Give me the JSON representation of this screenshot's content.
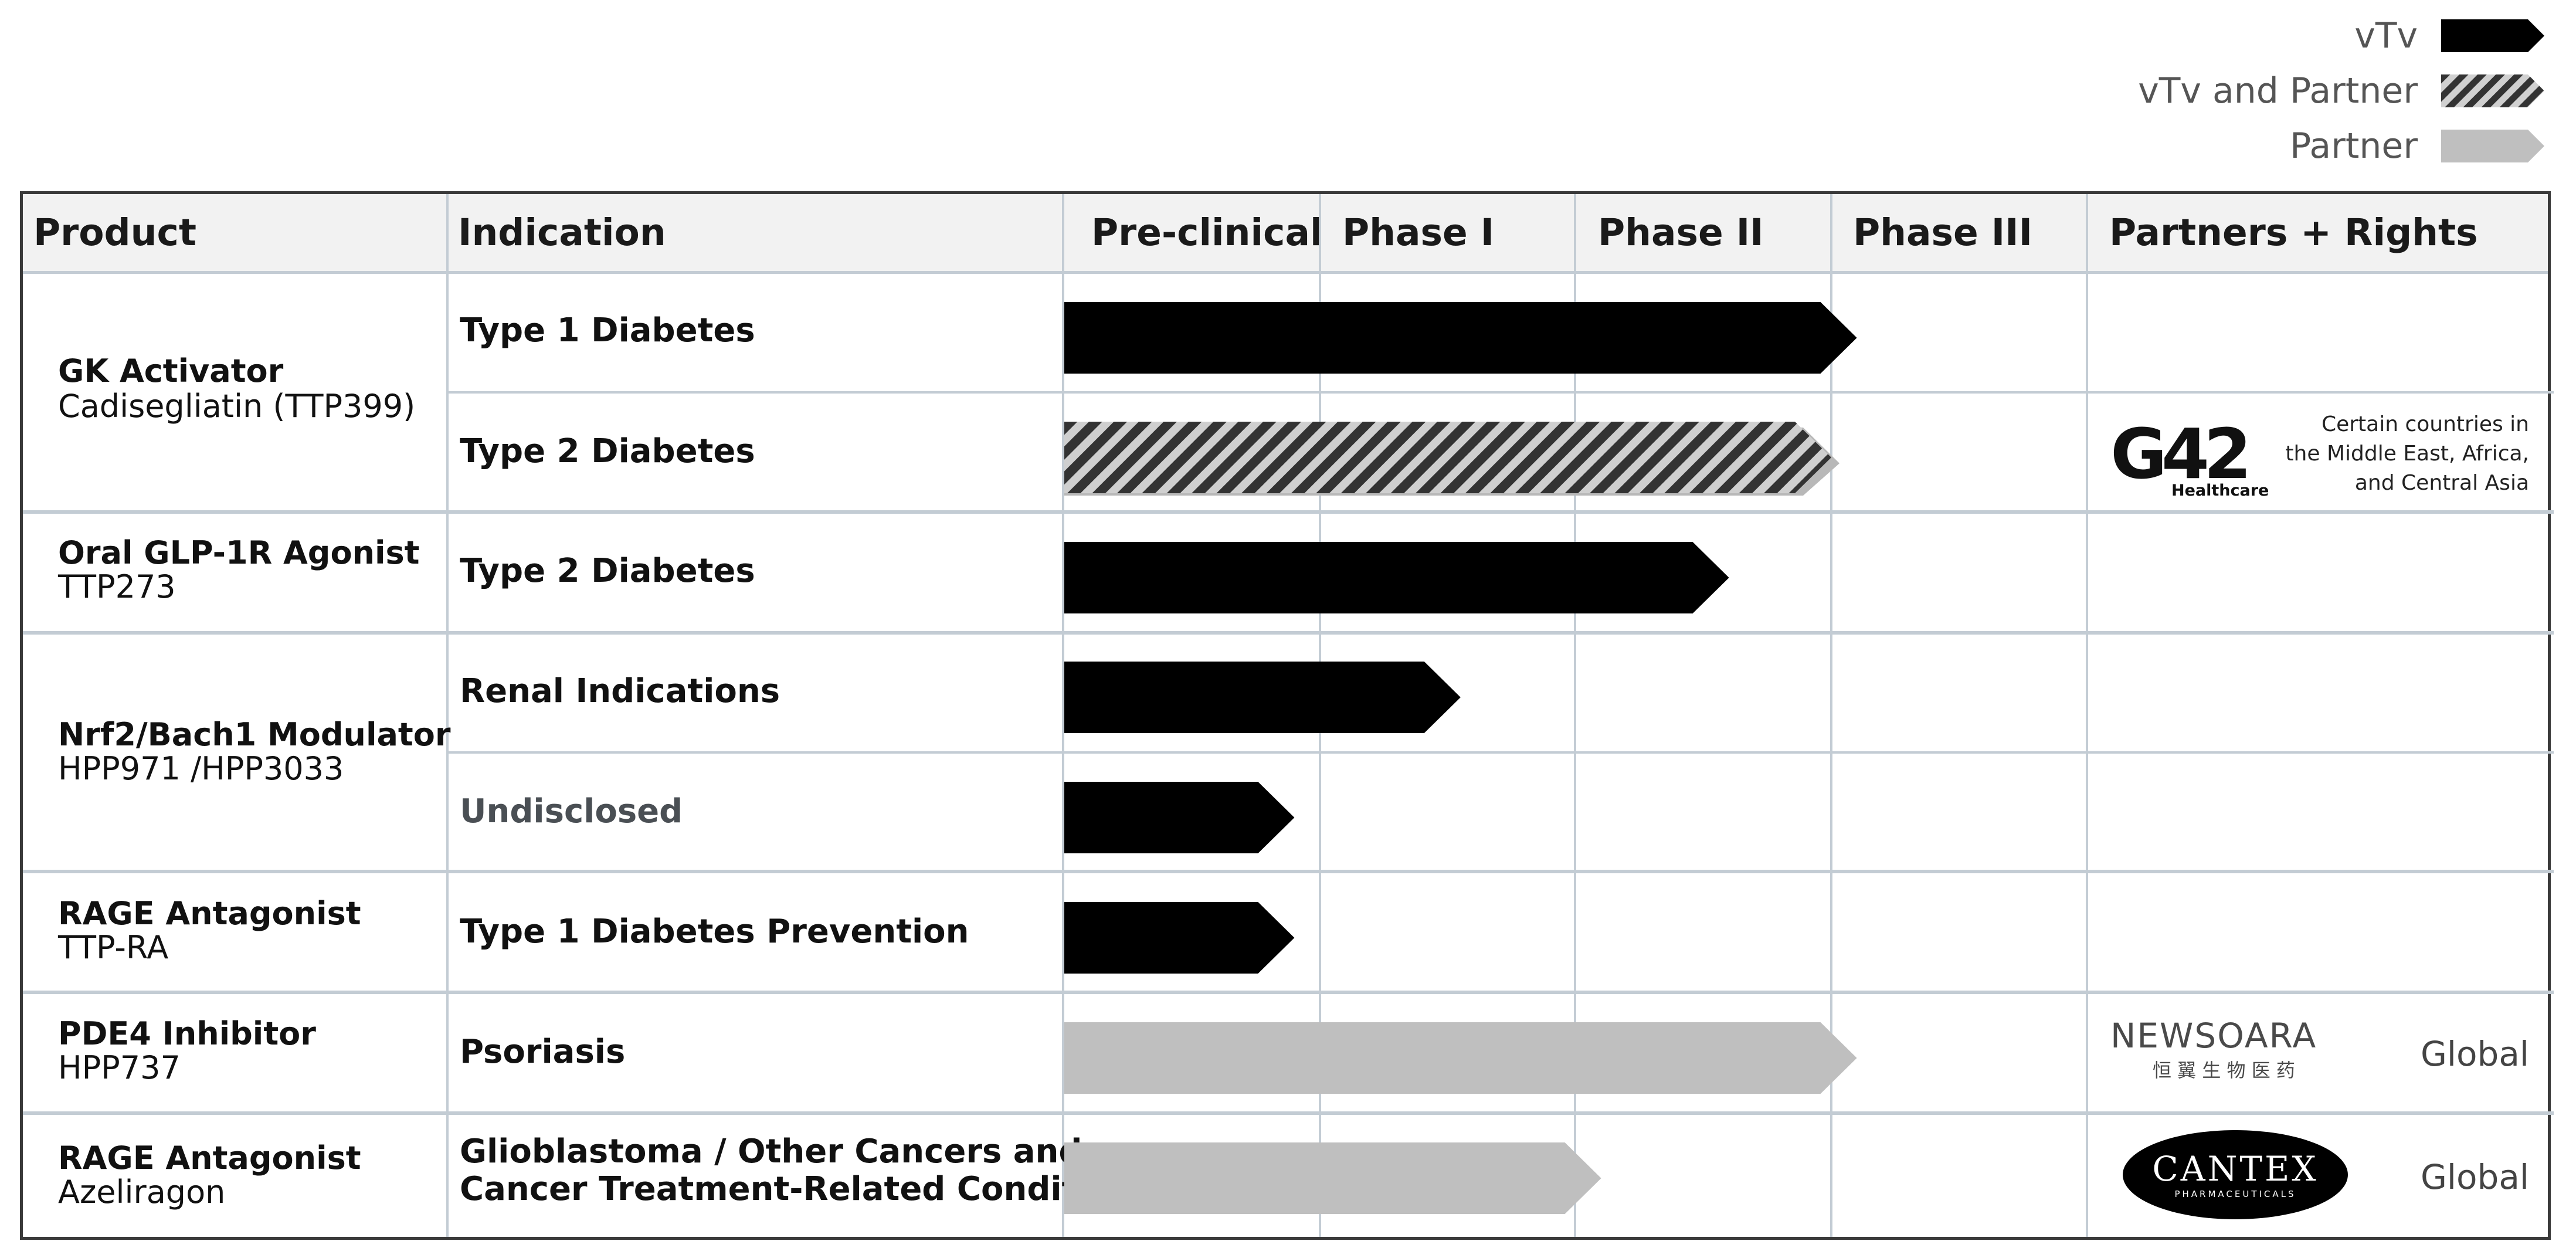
{
  "legend": [
    {
      "label": "vTv",
      "style": "solid"
    },
    {
      "label": "vTv and Partner",
      "style": "hatched"
    },
    {
      "label": "Partner",
      "style": "gray"
    }
  ],
  "columns": {
    "product": "Product",
    "indication": "Indication",
    "phases": [
      "Pre-clinical",
      "Phase I",
      "Phase II",
      "Phase III"
    ],
    "partners": "Partners + Rights"
  },
  "products": [
    {
      "name": "GK Activator",
      "code": "Cadisegliatin (TTP399)"
    },
    {
      "name": "Oral GLP-1R Agonist",
      "code": "TTP273"
    },
    {
      "name": "Nrf2/Bach1 Modulator",
      "code": "HPP971 /HPP3033"
    },
    {
      "name": "RAGE Antagonist",
      "code": "TTP-RA"
    },
    {
      "name": "PDE4 Inhibitor",
      "code": "HPP737"
    },
    {
      "name": "RAGE Antagonist",
      "code": "Azeliragon"
    }
  ],
  "rows": [
    {
      "indication": "Type 1 Diabetes",
      "progress": 3.1,
      "style": "solid"
    },
    {
      "indication": "Type 2 Diabetes",
      "progress": 3.0,
      "style": "hatched"
    },
    {
      "indication": "Type 2 Diabetes",
      "progress": 2.6,
      "style": "solid"
    },
    {
      "indication": "Renal Indications",
      "progress": 1.55,
      "style": "solid"
    },
    {
      "indication": "Undisclosed",
      "progress": 0.9,
      "style": "solid"
    },
    {
      "indication": "Type 1 Diabetes Prevention",
      "progress": 0.9,
      "style": "solid"
    },
    {
      "indication": "Psoriasis",
      "progress": 3.1,
      "style": "gray"
    },
    {
      "indication_lines": [
        "Glioblastoma / Other Cancers and",
        "Cancer Treatment-Related Conditions"
      ],
      "progress": 2.1,
      "style": "gray"
    }
  ],
  "partners": {
    "g42": {
      "logo_main": "G42",
      "logo_sub": "Healthcare",
      "rights_lines": [
        "Certain countries in",
        "the Middle East, Africa,",
        "and Central Asia"
      ]
    },
    "newsoara": {
      "logo_main": "NEWSOARA",
      "logo_sub": "恒 翼 生 物 医 药",
      "rights": "Global"
    },
    "cantex": {
      "logo_main": "CANTEX",
      "logo_sub": "PHARMACEUTICALS",
      "rights": "Global"
    }
  },
  "colors": {
    "solid": "#000000",
    "gray": "#bfbfbf",
    "grid": "#c3ccd4",
    "header_bg": "#f2f2f2"
  }
}
